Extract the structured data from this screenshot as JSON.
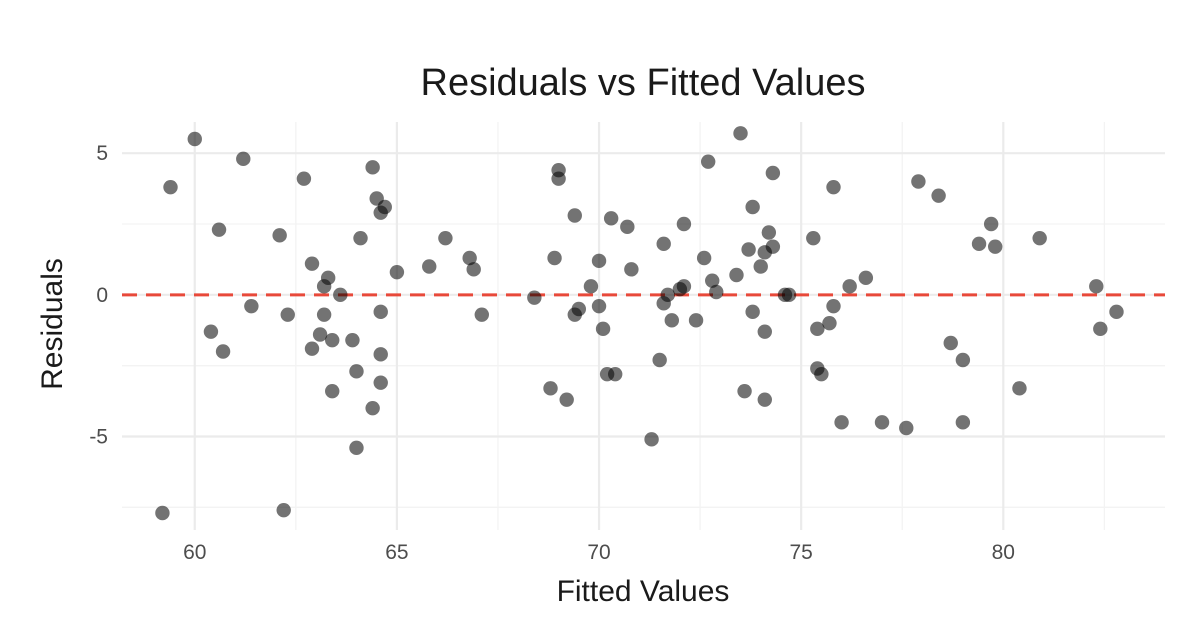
{
  "chart_data": {
    "type": "scatter",
    "title": "Residuals vs Fitted Values",
    "xlabel": "Fitted Values",
    "ylabel": "Residuals",
    "xlim": [
      58.2,
      84.0
    ],
    "ylim": [
      -8.3,
      6.1
    ],
    "x_ticks": [
      60,
      65,
      70,
      75,
      80
    ],
    "y_ticks": [
      -5,
      0,
      5
    ],
    "grid": true,
    "reference_line": {
      "y": 0,
      "style": "dashed",
      "color": "#e8493a"
    },
    "point_color": "#000000",
    "points": [
      {
        "x": 59.2,
        "y": -7.7
      },
      {
        "x": 59.4,
        "y": 3.8
      },
      {
        "x": 60.0,
        "y": 5.5
      },
      {
        "x": 60.4,
        "y": -1.3
      },
      {
        "x": 60.6,
        "y": 2.3
      },
      {
        "x": 60.7,
        "y": -2.0
      },
      {
        "x": 61.2,
        "y": 4.8
      },
      {
        "x": 61.4,
        "y": -0.4
      },
      {
        "x": 62.1,
        "y": 2.1
      },
      {
        "x": 62.2,
        "y": -7.6
      },
      {
        "x": 62.3,
        "y": -0.7
      },
      {
        "x": 62.7,
        "y": 4.1
      },
      {
        "x": 62.9,
        "y": 1.1
      },
      {
        "x": 62.9,
        "y": -1.9
      },
      {
        "x": 63.1,
        "y": -1.4
      },
      {
        "x": 63.2,
        "y": 0.3
      },
      {
        "x": 63.3,
        "y": 0.6
      },
      {
        "x": 63.2,
        "y": -0.7
      },
      {
        "x": 63.4,
        "y": -1.6
      },
      {
        "x": 63.4,
        "y": -3.4
      },
      {
        "x": 63.6,
        "y": 0.0
      },
      {
        "x": 63.9,
        "y": -1.6
      },
      {
        "x": 64.0,
        "y": -5.4
      },
      {
        "x": 64.0,
        "y": -2.7
      },
      {
        "x": 64.1,
        "y": 2.0
      },
      {
        "x": 64.4,
        "y": 4.5
      },
      {
        "x": 64.4,
        "y": -4.0
      },
      {
        "x": 64.5,
        "y": 3.4
      },
      {
        "x": 64.6,
        "y": 2.9
      },
      {
        "x": 64.7,
        "y": 3.1
      },
      {
        "x": 64.6,
        "y": -0.6
      },
      {
        "x": 64.6,
        "y": -2.1
      },
      {
        "x": 64.6,
        "y": -3.1
      },
      {
        "x": 65.0,
        "y": 0.8
      },
      {
        "x": 65.8,
        "y": 1.0
      },
      {
        "x": 66.2,
        "y": 2.0
      },
      {
        "x": 66.8,
        "y": 1.3
      },
      {
        "x": 66.9,
        "y": 0.9
      },
      {
        "x": 67.1,
        "y": -0.7
      },
      {
        "x": 68.4,
        "y": -0.1
      },
      {
        "x": 68.8,
        "y": -3.3
      },
      {
        "x": 68.9,
        "y": 1.3
      },
      {
        "x": 69.0,
        "y": 4.4
      },
      {
        "x": 69.0,
        "y": 4.1
      },
      {
        "x": 69.2,
        "y": -3.7
      },
      {
        "x": 69.4,
        "y": 2.8
      },
      {
        "x": 69.4,
        "y": -0.7
      },
      {
        "x": 69.5,
        "y": -0.5
      },
      {
        "x": 69.8,
        "y": 0.3
      },
      {
        "x": 70.0,
        "y": 1.2
      },
      {
        "x": 70.0,
        "y": -0.4
      },
      {
        "x": 70.1,
        "y": -1.2
      },
      {
        "x": 70.2,
        "y": -2.8
      },
      {
        "x": 70.3,
        "y": 2.7
      },
      {
        "x": 70.4,
        "y": -2.8
      },
      {
        "x": 70.7,
        "y": 2.4
      },
      {
        "x": 70.8,
        "y": 0.9
      },
      {
        "x": 71.3,
        "y": -5.1
      },
      {
        "x": 71.5,
        "y": -2.3
      },
      {
        "x": 71.6,
        "y": 1.8
      },
      {
        "x": 71.6,
        "y": -0.3
      },
      {
        "x": 71.7,
        "y": 0.0
      },
      {
        "x": 71.8,
        "y": -0.9
      },
      {
        "x": 72.0,
        "y": 0.2
      },
      {
        "x": 72.1,
        "y": 0.3
      },
      {
        "x": 72.1,
        "y": 2.5
      },
      {
        "x": 72.4,
        "y": -0.9
      },
      {
        "x": 72.6,
        "y": 1.3
      },
      {
        "x": 72.7,
        "y": 4.7
      },
      {
        "x": 72.8,
        "y": 0.5
      },
      {
        "x": 72.9,
        "y": 0.1
      },
      {
        "x": 73.4,
        "y": 0.7
      },
      {
        "x": 73.5,
        "y": 5.7
      },
      {
        "x": 73.6,
        "y": -3.4
      },
      {
        "x": 73.7,
        "y": 1.6
      },
      {
        "x": 73.8,
        "y": 3.1
      },
      {
        "x": 73.8,
        "y": -0.6
      },
      {
        "x": 74.0,
        "y": 1.0
      },
      {
        "x": 74.1,
        "y": -1.3
      },
      {
        "x": 74.1,
        "y": -3.7
      },
      {
        "x": 74.1,
        "y": 1.5
      },
      {
        "x": 74.2,
        "y": 2.2
      },
      {
        "x": 74.3,
        "y": 1.7
      },
      {
        "x": 74.3,
        "y": 4.3
      },
      {
        "x": 74.6,
        "y": 0.0
      },
      {
        "x": 74.7,
        "y": 0.0
      },
      {
        "x": 75.3,
        "y": 2.0
      },
      {
        "x": 75.4,
        "y": -1.2
      },
      {
        "x": 75.4,
        "y": -2.6
      },
      {
        "x": 75.5,
        "y": -2.8
      },
      {
        "x": 75.7,
        "y": -1.0
      },
      {
        "x": 75.8,
        "y": -0.4
      },
      {
        "x": 75.8,
        "y": 3.8
      },
      {
        "x": 76.0,
        "y": -4.5
      },
      {
        "x": 76.2,
        "y": 0.3
      },
      {
        "x": 76.6,
        "y": 0.6
      },
      {
        "x": 77.0,
        "y": -4.5
      },
      {
        "x": 77.6,
        "y": -4.7
      },
      {
        "x": 77.9,
        "y": 4.0
      },
      {
        "x": 78.4,
        "y": 3.5
      },
      {
        "x": 78.7,
        "y": -1.7
      },
      {
        "x": 79.0,
        "y": -2.3
      },
      {
        "x": 79.0,
        "y": -4.5
      },
      {
        "x": 79.4,
        "y": 1.8
      },
      {
        "x": 79.7,
        "y": 2.5
      },
      {
        "x": 79.8,
        "y": 1.7
      },
      {
        "x": 80.4,
        "y": -3.3
      },
      {
        "x": 80.9,
        "y": 2.0
      },
      {
        "x": 82.3,
        "y": 0.3
      },
      {
        "x": 82.4,
        "y": -1.2
      },
      {
        "x": 82.8,
        "y": -0.6
      }
    ]
  }
}
